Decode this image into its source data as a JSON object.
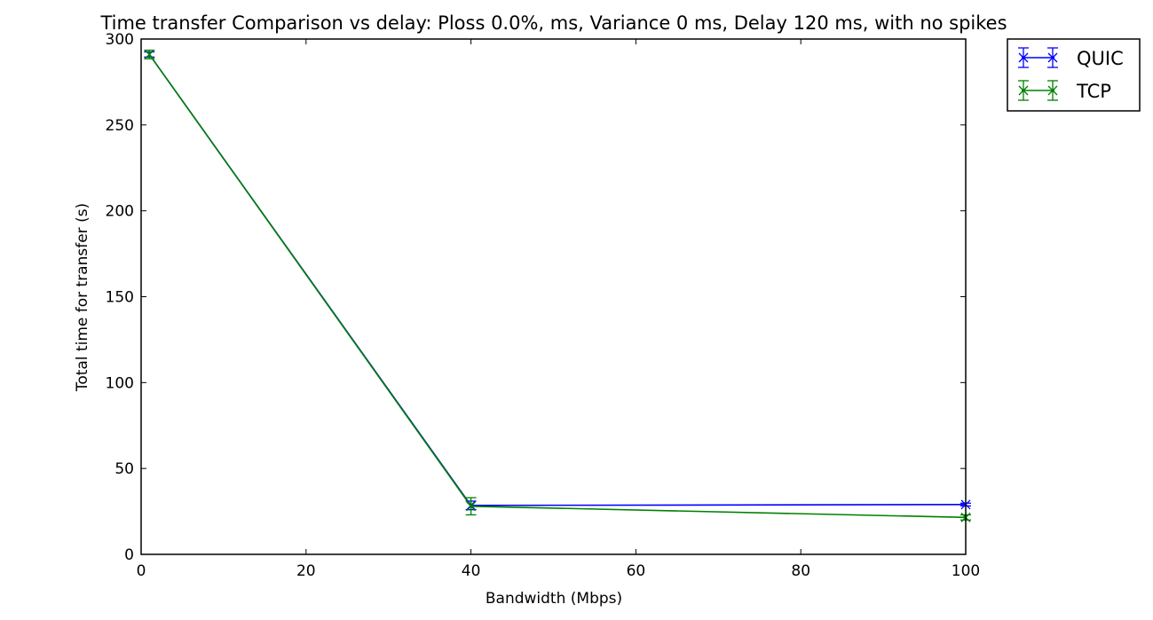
{
  "chart_data": {
    "type": "line",
    "title": "Time transfer Comparison vs delay: Ploss 0.0%, ms, Variance 0 ms, Delay 120 ms, with no spikes",
    "xlabel": "Bandwidth (Mbps)",
    "ylabel": "Total time for transfer (s)",
    "xlim": [
      0,
      100
    ],
    "ylim": [
      0,
      300
    ],
    "xticks": [
      0,
      20,
      40,
      60,
      80,
      100
    ],
    "yticks": [
      0,
      50,
      100,
      150,
      200,
      250,
      300
    ],
    "grid": false,
    "legend_position": "outside-top-right",
    "series": [
      {
        "name": "QUIC",
        "color": "#0000ff",
        "marker": "x",
        "x": [
          1,
          40,
          100
        ],
        "y": [
          291,
          28.5,
          29
        ],
        "yerr": [
          1.5,
          2.5,
          0.8
        ]
      },
      {
        "name": "TCP",
        "color": "#008000",
        "marker": "x",
        "x": [
          1,
          40,
          100
        ],
        "y": [
          291,
          28,
          21.5
        ],
        "yerr": [
          2.5,
          5,
          1.5
        ]
      }
    ]
  }
}
